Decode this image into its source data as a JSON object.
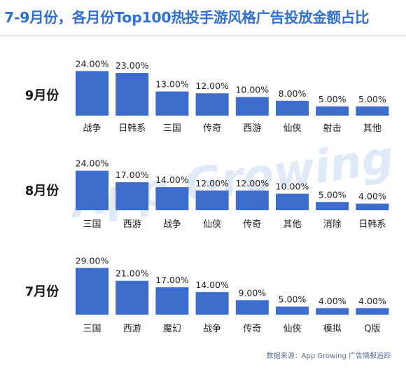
{
  "title": "7-9月份，各月份Top100热投手游风格广告投放金额占比",
  "watermark": "App Growing",
  "source": "数据来源：App Growing 广告情报追踪",
  "colors": {
    "bar": "#3d6dcc",
    "title": "#2f6fd6"
  },
  "chart_data": [
    {
      "type": "bar",
      "label": "9月份",
      "categories": [
        "战争",
        "日韩系",
        "三国",
        "传奇",
        "西游",
        "仙侠",
        "射击",
        "其他"
      ],
      "values": [
        24,
        23,
        13,
        12,
        10,
        8,
        5,
        5
      ],
      "value_labels": [
        "24.00%",
        "23.00%",
        "13.00%",
        "12.00%",
        "10.00%",
        "8.00%",
        "5.00%",
        "5.00%"
      ]
    },
    {
      "type": "bar",
      "label": "8月份",
      "categories": [
        "三国",
        "西游",
        "战争",
        "仙侠",
        "传奇",
        "其他",
        "消除",
        "日韩系"
      ],
      "values": [
        24,
        17,
        14,
        12,
        12,
        10,
        5,
        4
      ],
      "value_labels": [
        "24.00%",
        "17.00%",
        "14.00%",
        "12.00%",
        "12.00%",
        "10.00%",
        "5.00%",
        "4.00%"
      ]
    },
    {
      "type": "bar",
      "label": "7月份",
      "categories": [
        "三国",
        "西游",
        "魔幻",
        "战争",
        "传奇",
        "仙侠",
        "模拟",
        "Q版"
      ],
      "values": [
        29,
        21,
        17,
        14,
        9,
        5,
        4,
        4
      ],
      "value_labels": [
        "29.00%",
        "21.00%",
        "17.00%",
        "14.00%",
        "9.00%",
        "5.00%",
        "4.00%",
        "4.00%"
      ]
    }
  ]
}
